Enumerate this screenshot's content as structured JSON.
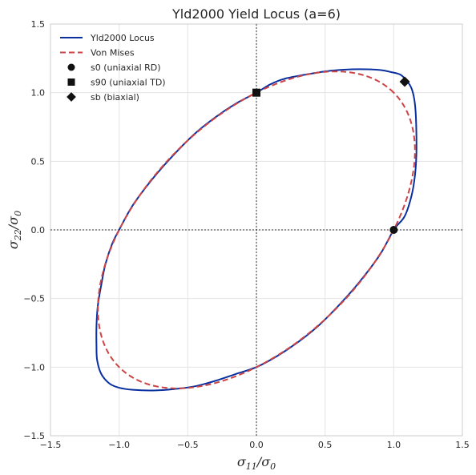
{
  "chart_data": {
    "type": "line",
    "title": "Yld2000 Yield Locus (a=6)",
    "xlabel": {
      "main": "σ",
      "sub": "11",
      "sep": "/σ",
      "sub2": "0"
    },
    "ylabel": {
      "main": "σ",
      "sub": "22",
      "sep": "/σ",
      "sub2": "0"
    },
    "xlim": [
      -1.5,
      1.5
    ],
    "ylim": [
      -1.5,
      1.5
    ],
    "xticks": [
      -1.5,
      -1.0,
      -0.5,
      0.0,
      0.5,
      1.0,
      1.5
    ],
    "yticks": [
      -1.5,
      -1.0,
      -0.5,
      0.0,
      0.5,
      1.0,
      1.5
    ],
    "xtick_labels": [
      "−1.5",
      "−1.0",
      "−0.5",
      "0.0",
      "0.5",
      "1.0",
      "1.5"
    ],
    "ytick_labels": [
      "−1.5",
      "−1.0",
      "−0.5",
      "0.0",
      "0.5",
      "1.0",
      "1.5"
    ],
    "grid": true,
    "legend_position": "top-left",
    "series": [
      {
        "name": "Yld2000 Locus",
        "style": "solid",
        "color": "#0a30a0",
        "x": [
          1.0,
          1.08,
          1.13,
          1.155,
          1.165,
          1.165,
          1.16,
          1.15,
          1.13,
          1.1,
          1.05,
          0.98,
          0.9,
          0.8,
          0.7,
          0.6,
          0.5,
          0.35,
          0.2,
          0.1,
          0.0,
          -0.15,
          -0.3,
          -0.45,
          -0.6,
          -0.75,
          -0.9,
          -1.0,
          -1.05,
          -1.1,
          -1.13,
          -1.155,
          -1.165,
          -1.165,
          -1.16,
          -1.13,
          -1.07,
          -1.0,
          -0.9,
          -0.75,
          -0.6,
          -0.45,
          -0.3,
          -0.15,
          0.0,
          0.15,
          0.3,
          0.45,
          0.6,
          0.75,
          0.9,
          1.0
        ],
        "y": [
          0.0,
          0.1,
          0.25,
          0.4,
          0.55,
          0.7,
          0.85,
          0.95,
          1.03,
          1.08,
          1.13,
          1.15,
          1.165,
          1.17,
          1.17,
          1.165,
          1.155,
          1.13,
          1.1,
          1.06,
          1.0,
          0.92,
          0.82,
          0.7,
          0.55,
          0.38,
          0.18,
          0.0,
          -0.1,
          -0.25,
          -0.4,
          -0.55,
          -0.7,
          -0.85,
          -0.95,
          -1.05,
          -1.12,
          -1.15,
          -1.165,
          -1.17,
          -1.16,
          -1.14,
          -1.1,
          -1.05,
          -1.0,
          -0.92,
          -0.82,
          -0.7,
          -0.55,
          -0.38,
          -0.18,
          0.0
        ]
      },
      {
        "name": "Von Mises",
        "style": "dashed",
        "color": "#cc4444",
        "equation": "x^2 - x*y + y^2 = 1"
      },
      {
        "name": "s0 (uniaxial RD)",
        "style": "marker",
        "marker": "circle",
        "color": "#111111",
        "x": [
          1.0
        ],
        "y": [
          0.0
        ]
      },
      {
        "name": "s90 (uniaxial TD)",
        "style": "marker",
        "marker": "square",
        "color": "#111111",
        "x": [
          0.0
        ],
        "y": [
          1.0
        ]
      },
      {
        "name": "sb (biaxial)",
        "style": "marker",
        "marker": "diamond",
        "color": "#111111",
        "x": [
          1.08
        ],
        "y": [
          1.08
        ]
      }
    ]
  }
}
